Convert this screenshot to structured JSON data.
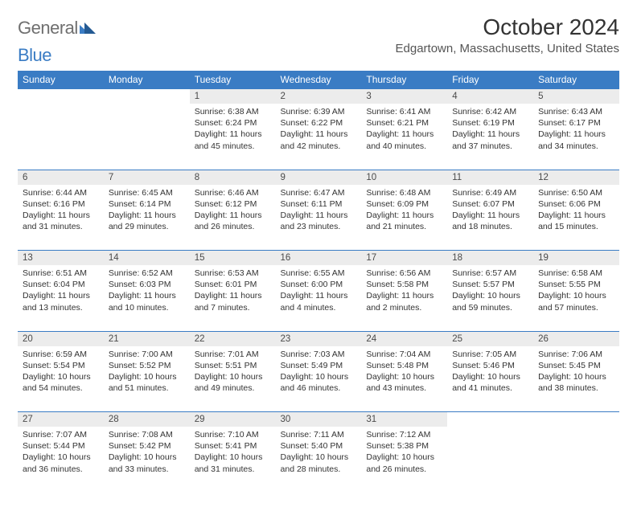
{
  "brand": {
    "part1": "General",
    "part2": "Blue"
  },
  "title": "October 2024",
  "location": "Edgartown, Massachusetts, United States",
  "colors": {
    "header_bg": "#3a7cc4",
    "header_text": "#ffffff",
    "daynum_bg": "#ececec",
    "border": "#3a7cc4",
    "text": "#333333",
    "logo_grey": "#6f6f6f",
    "logo_blue": "#3a7cc4"
  },
  "weekdays": [
    "Sunday",
    "Monday",
    "Tuesday",
    "Wednesday",
    "Thursday",
    "Friday",
    "Saturday"
  ],
  "weeks": [
    [
      null,
      null,
      {
        "n": "1",
        "sr": "6:38 AM",
        "ss": "6:24 PM",
        "dl": "11 hours and 45 minutes."
      },
      {
        "n": "2",
        "sr": "6:39 AM",
        "ss": "6:22 PM",
        "dl": "11 hours and 42 minutes."
      },
      {
        "n": "3",
        "sr": "6:41 AM",
        "ss": "6:21 PM",
        "dl": "11 hours and 40 minutes."
      },
      {
        "n": "4",
        "sr": "6:42 AM",
        "ss": "6:19 PM",
        "dl": "11 hours and 37 minutes."
      },
      {
        "n": "5",
        "sr": "6:43 AM",
        "ss": "6:17 PM",
        "dl": "11 hours and 34 minutes."
      }
    ],
    [
      {
        "n": "6",
        "sr": "6:44 AM",
        "ss": "6:16 PM",
        "dl": "11 hours and 31 minutes."
      },
      {
        "n": "7",
        "sr": "6:45 AM",
        "ss": "6:14 PM",
        "dl": "11 hours and 29 minutes."
      },
      {
        "n": "8",
        "sr": "6:46 AM",
        "ss": "6:12 PM",
        "dl": "11 hours and 26 minutes."
      },
      {
        "n": "9",
        "sr": "6:47 AM",
        "ss": "6:11 PM",
        "dl": "11 hours and 23 minutes."
      },
      {
        "n": "10",
        "sr": "6:48 AM",
        "ss": "6:09 PM",
        "dl": "11 hours and 21 minutes."
      },
      {
        "n": "11",
        "sr": "6:49 AM",
        "ss": "6:07 PM",
        "dl": "11 hours and 18 minutes."
      },
      {
        "n": "12",
        "sr": "6:50 AM",
        "ss": "6:06 PM",
        "dl": "11 hours and 15 minutes."
      }
    ],
    [
      {
        "n": "13",
        "sr": "6:51 AM",
        "ss": "6:04 PM",
        "dl": "11 hours and 13 minutes."
      },
      {
        "n": "14",
        "sr": "6:52 AM",
        "ss": "6:03 PM",
        "dl": "11 hours and 10 minutes."
      },
      {
        "n": "15",
        "sr": "6:53 AM",
        "ss": "6:01 PM",
        "dl": "11 hours and 7 minutes."
      },
      {
        "n": "16",
        "sr": "6:55 AM",
        "ss": "6:00 PM",
        "dl": "11 hours and 4 minutes."
      },
      {
        "n": "17",
        "sr": "6:56 AM",
        "ss": "5:58 PM",
        "dl": "11 hours and 2 minutes."
      },
      {
        "n": "18",
        "sr": "6:57 AM",
        "ss": "5:57 PM",
        "dl": "10 hours and 59 minutes."
      },
      {
        "n": "19",
        "sr": "6:58 AM",
        "ss": "5:55 PM",
        "dl": "10 hours and 57 minutes."
      }
    ],
    [
      {
        "n": "20",
        "sr": "6:59 AM",
        "ss": "5:54 PM",
        "dl": "10 hours and 54 minutes."
      },
      {
        "n": "21",
        "sr": "7:00 AM",
        "ss": "5:52 PM",
        "dl": "10 hours and 51 minutes."
      },
      {
        "n": "22",
        "sr": "7:01 AM",
        "ss": "5:51 PM",
        "dl": "10 hours and 49 minutes."
      },
      {
        "n": "23",
        "sr": "7:03 AM",
        "ss": "5:49 PM",
        "dl": "10 hours and 46 minutes."
      },
      {
        "n": "24",
        "sr": "7:04 AM",
        "ss": "5:48 PM",
        "dl": "10 hours and 43 minutes."
      },
      {
        "n": "25",
        "sr": "7:05 AM",
        "ss": "5:46 PM",
        "dl": "10 hours and 41 minutes."
      },
      {
        "n": "26",
        "sr": "7:06 AM",
        "ss": "5:45 PM",
        "dl": "10 hours and 38 minutes."
      }
    ],
    [
      {
        "n": "27",
        "sr": "7:07 AM",
        "ss": "5:44 PM",
        "dl": "10 hours and 36 minutes."
      },
      {
        "n": "28",
        "sr": "7:08 AM",
        "ss": "5:42 PM",
        "dl": "10 hours and 33 minutes."
      },
      {
        "n": "29",
        "sr": "7:10 AM",
        "ss": "5:41 PM",
        "dl": "10 hours and 31 minutes."
      },
      {
        "n": "30",
        "sr": "7:11 AM",
        "ss": "5:40 PM",
        "dl": "10 hours and 28 minutes."
      },
      {
        "n": "31",
        "sr": "7:12 AM",
        "ss": "5:38 PM",
        "dl": "10 hours and 26 minutes."
      },
      null,
      null
    ]
  ],
  "labels": {
    "sunrise": "Sunrise:",
    "sunset": "Sunset:",
    "daylight": "Daylight:"
  }
}
